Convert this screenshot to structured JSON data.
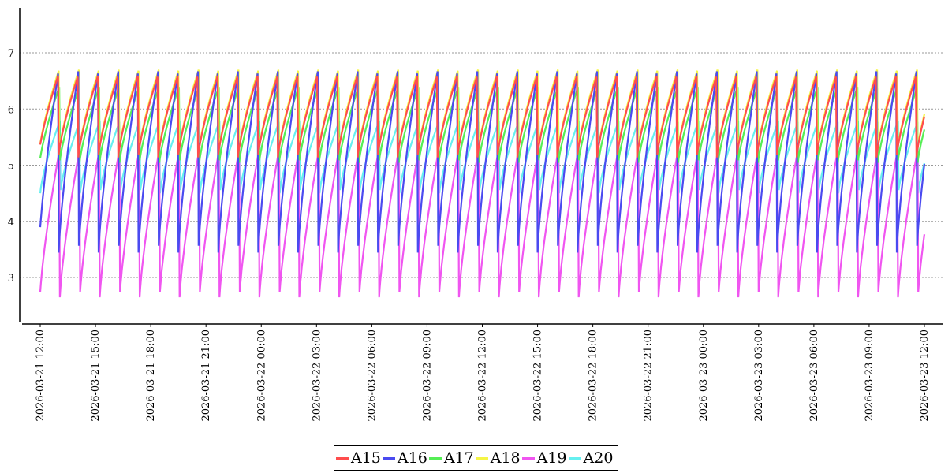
{
  "chart_data": {
    "type": "line",
    "title": "",
    "xlabel": "",
    "ylabel": "",
    "x_range": [
      "2026-03-21 12:00",
      "2026-03-23 12:00"
    ],
    "x_ticks": [
      "2026-03-21 12:00",
      "2026-03-21 15:00",
      "2026-03-21 18:00",
      "2026-03-21 21:00",
      "2026-03-22 00:00",
      "2026-03-22 03:00",
      "2026-03-22 06:00",
      "2026-03-22 09:00",
      "2026-03-22 12:00",
      "2026-03-22 15:00",
      "2026-03-22 18:00",
      "2026-03-22 21:00",
      "2026-03-23 00:00",
      "2026-03-23 03:00",
      "2026-03-23 06:00",
      "2026-03-23 09:00",
      "2026-03-23 12:00"
    ],
    "ylim": [
      2.2,
      7.8
    ],
    "y_ticks": [
      3,
      4,
      5,
      6,
      7
    ],
    "grid": "horizontal dashed",
    "legend": "bottom-center",
    "cycle_minutes": 65,
    "series": [
      {
        "name": "A15",
        "color": "#ff4d4d",
        "low": 5.1,
        "high": 6.6
      },
      {
        "name": "A16",
        "color": "#4a4af0",
        "low": 3.4,
        "high": 6.7
      },
      {
        "name": "A17",
        "color": "#55ee55",
        "low": 5.0,
        "high": 6.4
      },
      {
        "name": "A18",
        "color": "#f5f545",
        "low": 5.2,
        "high": 6.7
      },
      {
        "name": "A19",
        "color": "#f055f0",
        "low": 2.6,
        "high": 5.3
      },
      {
        "name": "A20",
        "color": "#66f0f0",
        "low": 4.5,
        "high": 5.8
      }
    ]
  }
}
